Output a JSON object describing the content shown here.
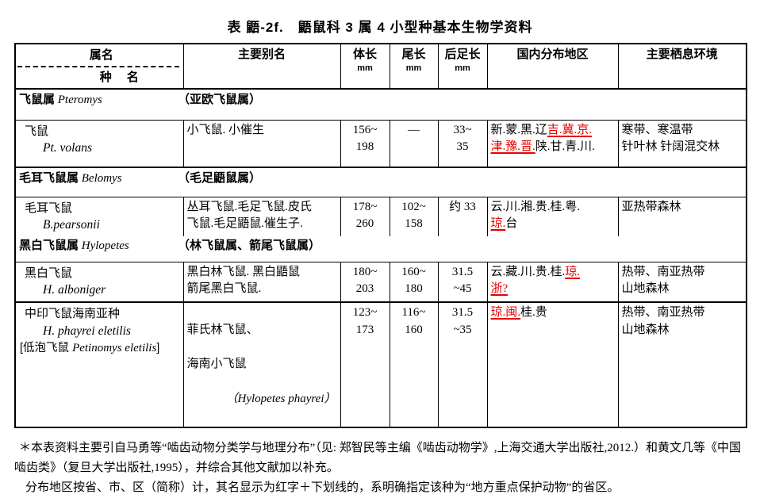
{
  "page": {
    "title": "表 鼯-2f.　鼯鼠科 3 属 4 小型种基本生物学资料"
  },
  "colors": {
    "protected_red": "#e60000",
    "text": "#000000",
    "background": "#ffffff"
  },
  "table": {
    "header": {
      "genus": "属名",
      "species": "种　名",
      "alias": "主要别名",
      "body": "体长",
      "tail": "尾长",
      "hindfoot": "后足长",
      "unit": "mm",
      "distribution": "国内分布地区",
      "habitat": "主要栖息环境"
    },
    "genus1": {
      "name": "飞鼠属",
      "latin": "Pteromys",
      "note": "（亚欧飞鼠属）"
    },
    "species1": {
      "name": "飞鼠",
      "latin": "Pt. volans",
      "alias": "小飞鼠. 小催生",
      "body": "156~\n198",
      "tail": "—",
      "hindfoot": "33~\n35",
      "distribution": [
        {
          "text": "新.蒙.黑.辽",
          "protected": false
        },
        {
          "text": "吉.冀.京.",
          "protected": true
        },
        {
          "text": "津.豫.晋.",
          "protected": true,
          "br": true
        },
        {
          "text": "陕.甘.青.川.",
          "protected": false
        }
      ],
      "habitat": "寒带、寒温带\n针叶林 针阔混交林"
    },
    "genus2": {
      "name": "毛耳飞鼠属",
      "latin": "Belomys",
      "note": "（毛足鼯鼠属）"
    },
    "species2": {
      "name": "毛耳飞鼠",
      "latin": "B.pearsonii",
      "alias": "丛耳飞鼠.毛足飞鼠.皮氏\n飞鼠.毛足鼯鼠.催生子.",
      "body": "178~\n260",
      "tail": "102~\n158",
      "hindfoot": "约 33",
      "distribution": [
        {
          "text": "云.川.湘.贵.桂.粤.",
          "protected": false
        },
        {
          "text": "琼.",
          "protected": true,
          "br": true
        },
        {
          "text": "台",
          "protected": false
        }
      ],
      "habitat": "亚热带森林"
    },
    "genus3": {
      "name": "黑白飞鼠属",
      "latin": "Hylopetes",
      "note": "（林飞鼠属、箭尾飞鼠属）"
    },
    "species3": {
      "name": "黑白飞鼠",
      "latin": "H. alboniger",
      "alias": "黑白林飞鼠. 黑白鼯鼠\n箭尾黑白飞鼠.",
      "body": "180~\n203",
      "tail": "160~\n180",
      "hindfoot": "31.5\n~45",
      "distribution": [
        {
          "text": "云.藏.川.贵.桂.",
          "protected": false
        },
        {
          "text": "琼.",
          "protected": true
        },
        {
          "text": "浙?",
          "protected": true,
          "br": true
        }
      ],
      "habitat": "热带、南亚热带\n山地森林"
    },
    "species4": {
      "name": "中印飞鼠海南亚种",
      "latin": "H. phayrei eletilis",
      "synonym_prefix": "[低泡飞鼠 ",
      "synonym_latin": "Petinomys eletilis",
      "synonym_suffix": "]",
      "alias_line1": "菲氏林飞鼠、",
      "alias_line2": "海南小飞鼠",
      "alias_latin": "（Hylopetes phayrei）",
      "body": "123~\n173",
      "tail": "116~\n160",
      "hindfoot": "31.5\n~35",
      "distribution": [
        {
          "text": "琼.闽.",
          "protected": true
        },
        {
          "text": "桂.贵",
          "protected": false
        }
      ],
      "habitat": "热带、南亚热带\n山地森林"
    }
  },
  "footnotes": {
    "line1": "＊本表资料主要引自马勇等“啮齿动物分类学与地理分布”（见: 郑智民等主编《啮齿动物学》,上海交通大学出版社,2012.）和黄文几等《中国啮齿类》（复旦大学出版社,1995），并综合其他文献加以补充。",
    "line2": "分布地区按省、市、区（简称）计，其名显示为红字＋下划线的，系明确指定该种为“地方重点保护动物”的省区。"
  }
}
